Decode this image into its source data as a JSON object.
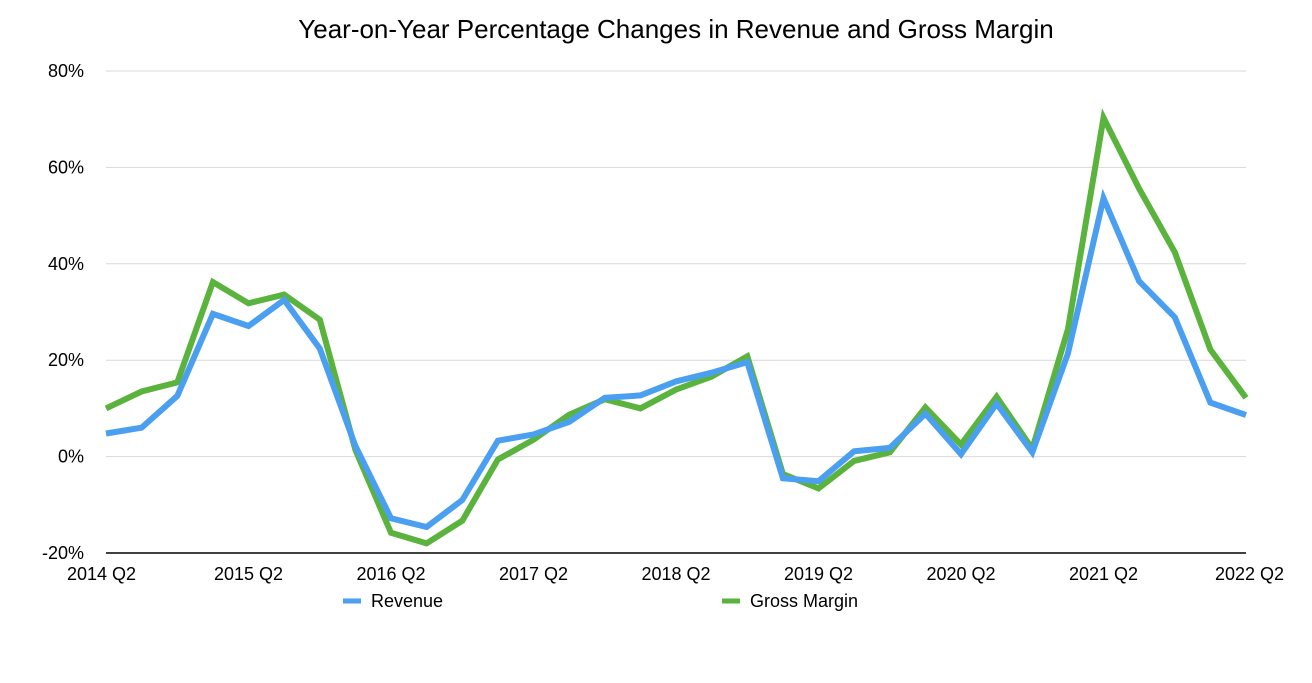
{
  "chart_data": {
    "type": "line",
    "title": "Year-on-Year Percentage Changes in Revenue and Gross Margin",
    "x": [
      "2014 Q2",
      "2014 Q3",
      "2014 Q4",
      "2015 Q1",
      "2015 Q2",
      "2015 Q3",
      "2015 Q4",
      "2016 Q1",
      "2016 Q2",
      "2016 Q3",
      "2016 Q4",
      "2017 Q1",
      "2017 Q2",
      "2017 Q3",
      "2017 Q4",
      "2018 Q1",
      "2018 Q2",
      "2018 Q3",
      "2018 Q4",
      "2019 Q1",
      "2019 Q2",
      "2019 Q3",
      "2019 Q4",
      "2020 Q1",
      "2020 Q2",
      "2020 Q3",
      "2020 Q4",
      "2021 Q1",
      "2021 Q2",
      "2021 Q3",
      "2021 Q4",
      "2022 Q1",
      "2022 Q2"
    ],
    "x_tick_labels": [
      "2014 Q2",
      "2015 Q2",
      "2016 Q2",
      "2017 Q2",
      "2018 Q2",
      "2019 Q2",
      "2020 Q2",
      "2021 Q2",
      "2022 Q2"
    ],
    "y_tick_labels": [
      "80%",
      "60%",
      "40%",
      "20%",
      "0%",
      "-20%"
    ],
    "y_ticks": [
      80,
      60,
      40,
      20,
      0,
      -20
    ],
    "ylim": [
      -20,
      80
    ],
    "grid": true,
    "legend_position": "bottom",
    "series": [
      {
        "name": "Revenue",
        "color": "#4a9ff0",
        "values": [
          4.8,
          6.0,
          12.6,
          29.6,
          27.1,
          32.5,
          22.4,
          2.2,
          -12.8,
          -14.6,
          -9.0,
          3.3,
          4.6,
          7.2,
          12.2,
          12.7,
          15.6,
          17.4,
          19.6,
          -4.5,
          -5.1,
          1.1,
          1.8,
          8.9,
          0.5,
          11.0,
          0.9,
          21.4,
          53.6,
          36.4,
          28.9,
          11.2,
          8.6
        ]
      },
      {
        "name": "Gross Margin",
        "color": "#5ab33c",
        "values": [
          10.0,
          13.5,
          15.4,
          36.2,
          31.8,
          33.6,
          28.4,
          1.4,
          -15.8,
          -18.0,
          -13.3,
          -0.6,
          3.5,
          8.7,
          11.9,
          10.0,
          13.9,
          16.6,
          20.8,
          -3.6,
          -6.6,
          -0.9,
          0.9,
          10.2,
          2.5,
          12.4,
          1.6,
          26.4,
          70.3,
          55.6,
          42.4,
          22.2,
          12.2
        ]
      }
    ]
  }
}
